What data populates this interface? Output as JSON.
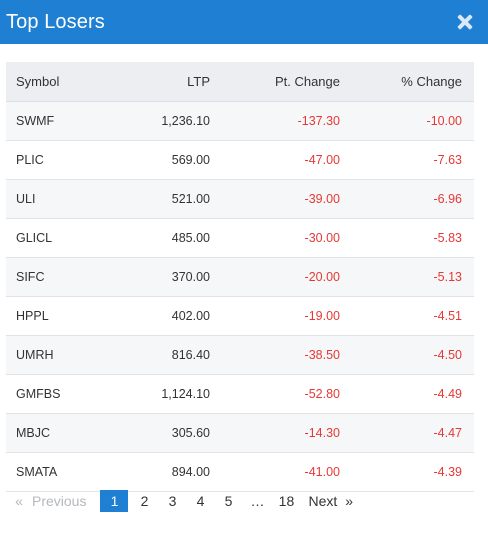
{
  "header": {
    "title": "Top Losers",
    "close_icon": "close-icon"
  },
  "table": {
    "columns": [
      "Symbol",
      "LTP",
      "Pt. Change",
      "% Change"
    ],
    "rows": [
      {
        "symbol": "SWMF",
        "ltp": "1,236.10",
        "pt_change": "-137.30",
        "pct_change": "-10.00"
      },
      {
        "symbol": "PLIC",
        "ltp": "569.00",
        "pt_change": "-47.00",
        "pct_change": "-7.63"
      },
      {
        "symbol": "ULI",
        "ltp": "521.00",
        "pt_change": "-39.00",
        "pct_change": "-6.96"
      },
      {
        "symbol": "GLICL",
        "ltp": "485.00",
        "pt_change": "-30.00",
        "pct_change": "-5.83"
      },
      {
        "symbol": "SIFC",
        "ltp": "370.00",
        "pt_change": "-20.00",
        "pct_change": "-5.13"
      },
      {
        "symbol": "HPPL",
        "ltp": "402.00",
        "pt_change": "-19.00",
        "pct_change": "-4.51"
      },
      {
        "symbol": "UMRH",
        "ltp": "816.40",
        "pt_change": "-38.50",
        "pct_change": "-4.50"
      },
      {
        "symbol": "GMFBS",
        "ltp": "1,124.10",
        "pt_change": "-52.80",
        "pct_change": "-4.49"
      },
      {
        "symbol": "MBJC",
        "ltp": "305.60",
        "pt_change": "-14.30",
        "pct_change": "-4.47"
      },
      {
        "symbol": "SMATA",
        "ltp": "894.00",
        "pt_change": "-41.00",
        "pct_change": "-4.39"
      }
    ]
  },
  "pagination": {
    "prev_arrow": "«",
    "prev_label": "Previous",
    "pages": [
      "1",
      "2",
      "3",
      "4",
      "5"
    ],
    "active_page": "1",
    "ellipsis": "…",
    "last_page": "18",
    "next_label": "Next",
    "next_arrow": "»"
  },
  "colors": {
    "header_bg": "#1e7fd3",
    "negative": "#e53935",
    "active_page_bg": "#1e7fd3"
  }
}
